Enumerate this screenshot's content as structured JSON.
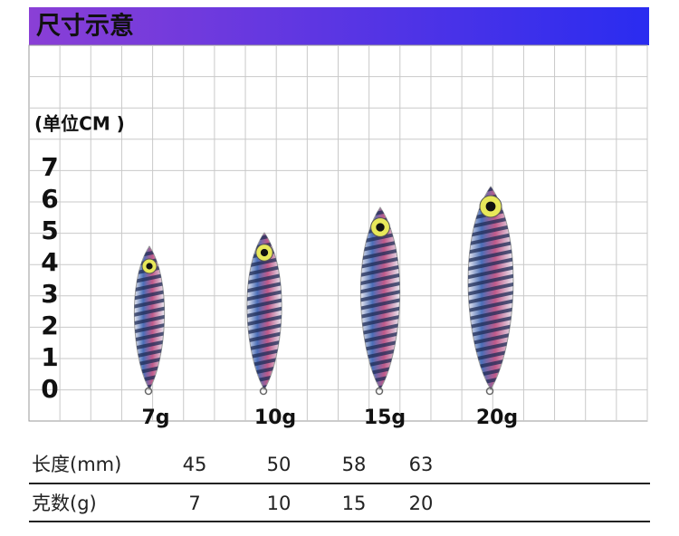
{
  "header": {
    "title": "尺寸示意"
  },
  "unit_label": "(单位CM )",
  "scale": [
    "7",
    "6",
    "5",
    "4",
    "3",
    "2",
    "1",
    "0"
  ],
  "lure_labels": [
    "7g",
    "10g",
    "15g",
    "20g"
  ],
  "table": {
    "rows": [
      [
        "长度(mm)",
        "45",
        "50",
        "58",
        "63"
      ],
      [
        "克数(g)",
        "7",
        "10",
        "15",
        "20"
      ]
    ]
  }
}
